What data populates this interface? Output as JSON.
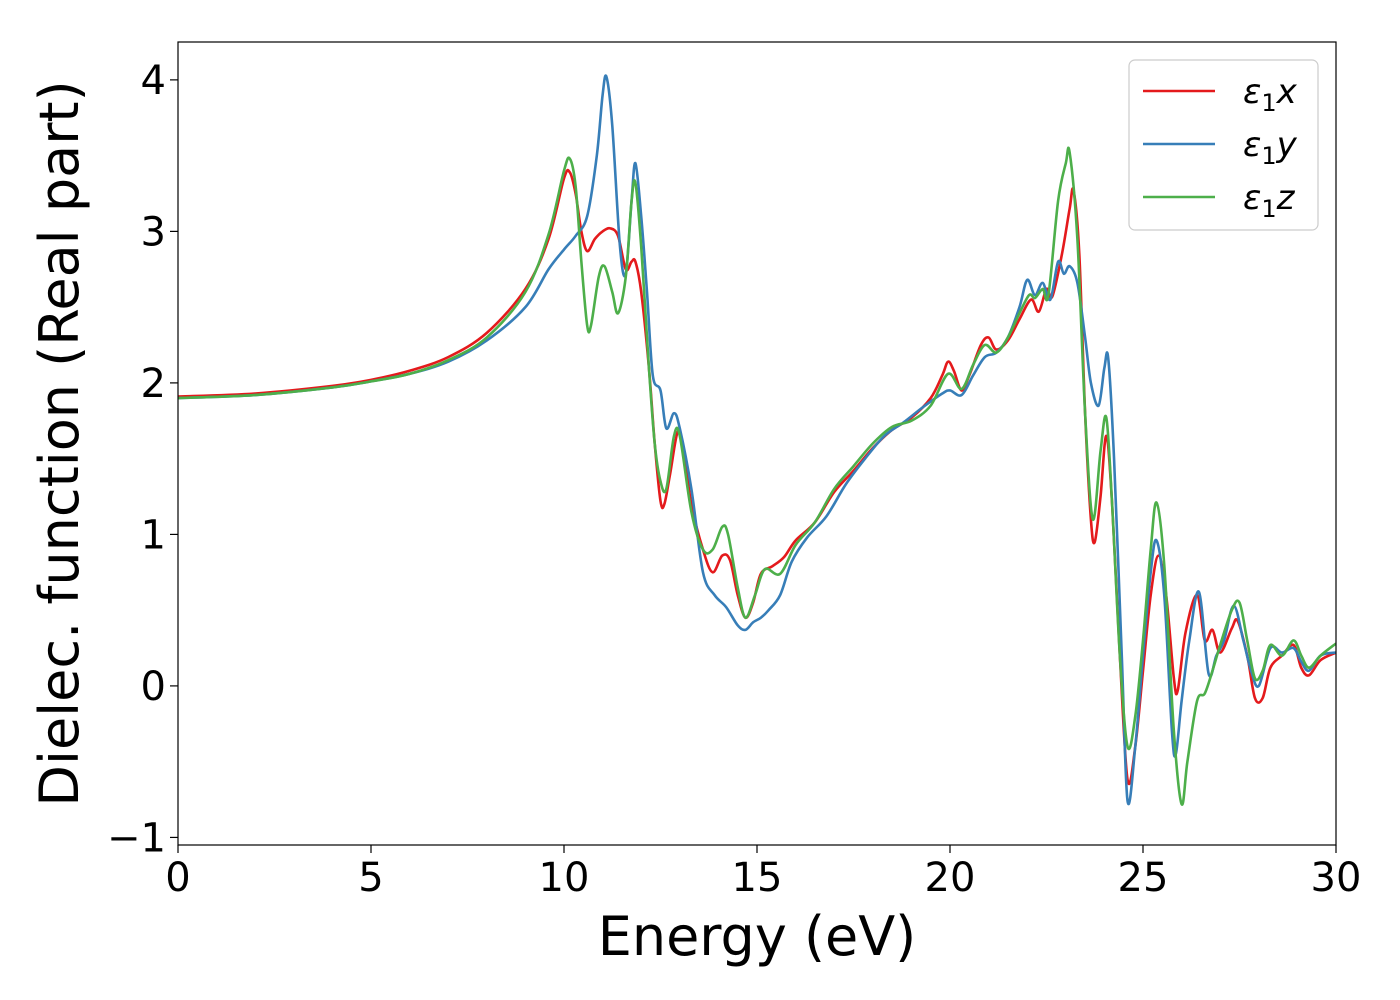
{
  "chart_data": {
    "type": "line",
    "xlabel": "Energy (eV)",
    "ylabel": "Dielec. function (Real part)",
    "xlim": [
      0,
      30
    ],
    "ylim": [
      -1.05,
      4.25
    ],
    "xticks": [
      0,
      5,
      10,
      15,
      20,
      25,
      30
    ],
    "yticks": [
      -1,
      0,
      1,
      2,
      3,
      4
    ],
    "xtick_labels": [
      "0",
      "5",
      "10",
      "15",
      "20",
      "25",
      "30"
    ],
    "ytick_labels": [
      "−1",
      "0",
      "1",
      "2",
      "3",
      "4"
    ],
    "grid": false,
    "legend_position": "top-right",
    "series": [
      {
        "name": "x",
        "legend_prefix": "ε",
        "legend_sub": "1",
        "color": "#e41a1c",
        "points": [
          [
            0,
            1.91
          ],
          [
            2,
            1.93
          ],
          [
            4,
            1.98
          ],
          [
            5,
            2.02
          ],
          [
            6,
            2.08
          ],
          [
            7,
            2.17
          ],
          [
            8,
            2.33
          ],
          [
            9,
            2.62
          ],
          [
            9.6,
            2.95
          ],
          [
            10.0,
            3.35
          ],
          [
            10.15,
            3.39
          ],
          [
            10.3,
            3.25
          ],
          [
            10.45,
            3.0
          ],
          [
            10.6,
            2.87
          ],
          [
            10.8,
            2.95
          ],
          [
            11.0,
            3.0
          ],
          [
            11.2,
            3.02
          ],
          [
            11.4,
            2.97
          ],
          [
            11.6,
            2.75
          ],
          [
            11.75,
            2.8
          ],
          [
            11.85,
            2.8
          ],
          [
            12.0,
            2.6
          ],
          [
            12.2,
            2.1
          ],
          [
            12.35,
            1.6
          ],
          [
            12.5,
            1.22
          ],
          [
            12.6,
            1.2
          ],
          [
            12.75,
            1.4
          ],
          [
            12.95,
            1.68
          ],
          [
            13.1,
            1.55
          ],
          [
            13.3,
            1.2
          ],
          [
            13.6,
            0.9
          ],
          [
            13.85,
            0.75
          ],
          [
            14.1,
            0.86
          ],
          [
            14.3,
            0.83
          ],
          [
            14.5,
            0.6
          ],
          [
            14.7,
            0.45
          ],
          [
            14.9,
            0.55
          ],
          [
            15.1,
            0.74
          ],
          [
            15.4,
            0.79
          ],
          [
            15.7,
            0.85
          ],
          [
            16.0,
            0.96
          ],
          [
            16.5,
            1.08
          ],
          [
            17.0,
            1.28
          ],
          [
            17.5,
            1.42
          ],
          [
            18.0,
            1.57
          ],
          [
            18.5,
            1.69
          ],
          [
            19.0,
            1.77
          ],
          [
            19.5,
            1.9
          ],
          [
            19.8,
            2.05
          ],
          [
            19.95,
            2.14
          ],
          [
            20.1,
            2.08
          ],
          [
            20.3,
            1.95
          ],
          [
            20.5,
            2.05
          ],
          [
            20.8,
            2.25
          ],
          [
            21.0,
            2.3
          ],
          [
            21.2,
            2.22
          ],
          [
            21.5,
            2.28
          ],
          [
            21.8,
            2.42
          ],
          [
            22.1,
            2.55
          ],
          [
            22.3,
            2.47
          ],
          [
            22.5,
            2.62
          ],
          [
            22.65,
            2.57
          ],
          [
            22.9,
            2.85
          ],
          [
            23.1,
            3.15
          ],
          [
            23.2,
            3.27
          ],
          [
            23.35,
            2.85
          ],
          [
            23.5,
            1.8
          ],
          [
            23.65,
            1.1
          ],
          [
            23.75,
            0.95
          ],
          [
            23.9,
            1.25
          ],
          [
            24.05,
            1.65
          ],
          [
            24.2,
            1.2
          ],
          [
            24.4,
            0.2
          ],
          [
            24.6,
            -0.62
          ],
          [
            24.8,
            -0.4
          ],
          [
            25.0,
            0.1
          ],
          [
            25.2,
            0.6
          ],
          [
            25.4,
            0.86
          ],
          [
            25.6,
            0.6
          ],
          [
            25.8,
            0.05
          ],
          [
            25.9,
            -0.03
          ],
          [
            26.1,
            0.35
          ],
          [
            26.4,
            0.6
          ],
          [
            26.6,
            0.3
          ],
          [
            26.8,
            0.37
          ],
          [
            27.0,
            0.22
          ],
          [
            27.3,
            0.38
          ],
          [
            27.45,
            0.43
          ],
          [
            27.7,
            0.2
          ],
          [
            27.9,
            -0.08
          ],
          [
            28.1,
            -0.08
          ],
          [
            28.3,
            0.12
          ],
          [
            28.6,
            0.2
          ],
          [
            28.9,
            0.27
          ],
          [
            29.1,
            0.12
          ],
          [
            29.3,
            0.07
          ],
          [
            29.6,
            0.17
          ],
          [
            30,
            0.22
          ]
        ]
      },
      {
        "name": "y",
        "legend_prefix": "ε",
        "legend_sub": "1",
        "color": "#377eb8",
        "points": [
          [
            0,
            1.9
          ],
          [
            2,
            1.92
          ],
          [
            4,
            1.97
          ],
          [
            5,
            2.01
          ],
          [
            6,
            2.06
          ],
          [
            7,
            2.14
          ],
          [
            8,
            2.28
          ],
          [
            9,
            2.5
          ],
          [
            9.6,
            2.75
          ],
          [
            10.0,
            2.88
          ],
          [
            10.3,
            2.97
          ],
          [
            10.6,
            3.1
          ],
          [
            10.85,
            3.5
          ],
          [
            11.0,
            3.9
          ],
          [
            11.1,
            4.02
          ],
          [
            11.25,
            3.7
          ],
          [
            11.45,
            2.9
          ],
          [
            11.6,
            2.72
          ],
          [
            11.75,
            3.2
          ],
          [
            11.85,
            3.45
          ],
          [
            12.0,
            3.1
          ],
          [
            12.15,
            2.6
          ],
          [
            12.3,
            2.05
          ],
          [
            12.5,
            1.95
          ],
          [
            12.65,
            1.7
          ],
          [
            12.85,
            1.8
          ],
          [
            13.0,
            1.7
          ],
          [
            13.3,
            1.3
          ],
          [
            13.6,
            0.75
          ],
          [
            13.9,
            0.6
          ],
          [
            14.2,
            0.52
          ],
          [
            14.5,
            0.4
          ],
          [
            14.7,
            0.37
          ],
          [
            14.9,
            0.42
          ],
          [
            15.1,
            0.45
          ],
          [
            15.3,
            0.5
          ],
          [
            15.6,
            0.6
          ],
          [
            15.9,
            0.82
          ],
          [
            16.3,
            0.98
          ],
          [
            16.8,
            1.12
          ],
          [
            17.3,
            1.33
          ],
          [
            17.8,
            1.5
          ],
          [
            18.3,
            1.65
          ],
          [
            18.8,
            1.74
          ],
          [
            19.3,
            1.84
          ],
          [
            19.8,
            1.93
          ],
          [
            20.0,
            1.95
          ],
          [
            20.3,
            1.92
          ],
          [
            20.6,
            2.05
          ],
          [
            20.9,
            2.17
          ],
          [
            21.2,
            2.2
          ],
          [
            21.5,
            2.3
          ],
          [
            21.8,
            2.5
          ],
          [
            22.0,
            2.68
          ],
          [
            22.2,
            2.58
          ],
          [
            22.4,
            2.66
          ],
          [
            22.6,
            2.55
          ],
          [
            22.8,
            2.8
          ],
          [
            22.95,
            2.72
          ],
          [
            23.1,
            2.77
          ],
          [
            23.3,
            2.66
          ],
          [
            23.5,
            2.3
          ],
          [
            23.65,
            2.0
          ],
          [
            23.85,
            1.85
          ],
          [
            24.0,
            2.1
          ],
          [
            24.1,
            2.16
          ],
          [
            24.25,
            1.5
          ],
          [
            24.45,
            0.2
          ],
          [
            24.6,
            -0.76
          ],
          [
            24.8,
            -0.4
          ],
          [
            25.0,
            0.2
          ],
          [
            25.2,
            0.75
          ],
          [
            25.35,
            0.96
          ],
          [
            25.55,
            0.6
          ],
          [
            25.75,
            -0.3
          ],
          [
            25.85,
            -0.45
          ],
          [
            26.0,
            -0.1
          ],
          [
            26.2,
            0.3
          ],
          [
            26.45,
            0.62
          ],
          [
            26.7,
            0.08
          ],
          [
            26.9,
            0.2
          ],
          [
            27.1,
            0.3
          ],
          [
            27.35,
            0.53
          ],
          [
            27.6,
            0.3
          ],
          [
            27.8,
            0.1
          ],
          [
            28.0,
            0.0
          ],
          [
            28.3,
            0.25
          ],
          [
            28.6,
            0.22
          ],
          [
            28.9,
            0.25
          ],
          [
            29.1,
            0.16
          ],
          [
            29.3,
            0.1
          ],
          [
            29.6,
            0.2
          ],
          [
            30,
            0.22
          ]
        ]
      },
      {
        "name": "z",
        "legend_prefix": "ε",
        "legend_sub": "1",
        "color": "#4daf4a",
        "points": [
          [
            0,
            1.9
          ],
          [
            2,
            1.92
          ],
          [
            4,
            1.97
          ],
          [
            5,
            2.01
          ],
          [
            6,
            2.06
          ],
          [
            7,
            2.15
          ],
          [
            8,
            2.3
          ],
          [
            9,
            2.6
          ],
          [
            9.6,
            2.98
          ],
          [
            10.0,
            3.4
          ],
          [
            10.15,
            3.48
          ],
          [
            10.3,
            3.3
          ],
          [
            10.45,
            2.8
          ],
          [
            10.6,
            2.38
          ],
          [
            10.7,
            2.38
          ],
          [
            10.9,
            2.7
          ],
          [
            11.05,
            2.77
          ],
          [
            11.25,
            2.6
          ],
          [
            11.4,
            2.46
          ],
          [
            11.6,
            2.7
          ],
          [
            11.75,
            3.2
          ],
          [
            11.85,
            3.32
          ],
          [
            12.0,
            2.9
          ],
          [
            12.2,
            2.1
          ],
          [
            12.35,
            1.6
          ],
          [
            12.5,
            1.35
          ],
          [
            12.65,
            1.3
          ],
          [
            12.85,
            1.65
          ],
          [
            13.0,
            1.65
          ],
          [
            13.3,
            1.15
          ],
          [
            13.6,
            0.9
          ],
          [
            13.85,
            0.9
          ],
          [
            14.1,
            1.05
          ],
          [
            14.25,
            1.0
          ],
          [
            14.5,
            0.65
          ],
          [
            14.7,
            0.45
          ],
          [
            14.95,
            0.6
          ],
          [
            15.2,
            0.77
          ],
          [
            15.6,
            0.74
          ],
          [
            16.0,
            0.93
          ],
          [
            16.5,
            1.08
          ],
          [
            17.0,
            1.3
          ],
          [
            17.5,
            1.45
          ],
          [
            18.0,
            1.6
          ],
          [
            18.5,
            1.71
          ],
          [
            19.0,
            1.75
          ],
          [
            19.5,
            1.85
          ],
          [
            19.95,
            2.06
          ],
          [
            20.3,
            1.96
          ],
          [
            20.6,
            2.12
          ],
          [
            20.9,
            2.25
          ],
          [
            21.2,
            2.2
          ],
          [
            21.5,
            2.3
          ],
          [
            21.8,
            2.46
          ],
          [
            22.05,
            2.58
          ],
          [
            22.2,
            2.56
          ],
          [
            22.4,
            2.62
          ],
          [
            22.55,
            2.58
          ],
          [
            22.8,
            3.2
          ],
          [
            23.0,
            3.45
          ],
          [
            23.1,
            3.52
          ],
          [
            23.3,
            2.95
          ],
          [
            23.5,
            1.8
          ],
          [
            23.7,
            1.1
          ],
          [
            23.9,
            1.55
          ],
          [
            24.05,
            1.77
          ],
          [
            24.2,
            1.2
          ],
          [
            24.4,
            0.2
          ],
          [
            24.6,
            -0.4
          ],
          [
            24.8,
            -0.2
          ],
          [
            25.0,
            0.3
          ],
          [
            25.2,
            0.9
          ],
          [
            25.35,
            1.21
          ],
          [
            25.55,
            0.8
          ],
          [
            25.8,
            -0.3
          ],
          [
            26.0,
            -0.78
          ],
          [
            26.15,
            -0.5
          ],
          [
            26.4,
            -0.1
          ],
          [
            26.6,
            -0.05
          ],
          [
            26.8,
            0.1
          ],
          [
            27.0,
            0.27
          ],
          [
            27.3,
            0.5
          ],
          [
            27.5,
            0.55
          ],
          [
            27.7,
            0.3
          ],
          [
            27.9,
            0.05
          ],
          [
            28.1,
            0.1
          ],
          [
            28.3,
            0.27
          ],
          [
            28.6,
            0.2
          ],
          [
            28.9,
            0.3
          ],
          [
            29.1,
            0.2
          ],
          [
            29.3,
            0.12
          ],
          [
            29.6,
            0.2
          ],
          [
            30,
            0.28
          ]
        ]
      }
    ]
  }
}
